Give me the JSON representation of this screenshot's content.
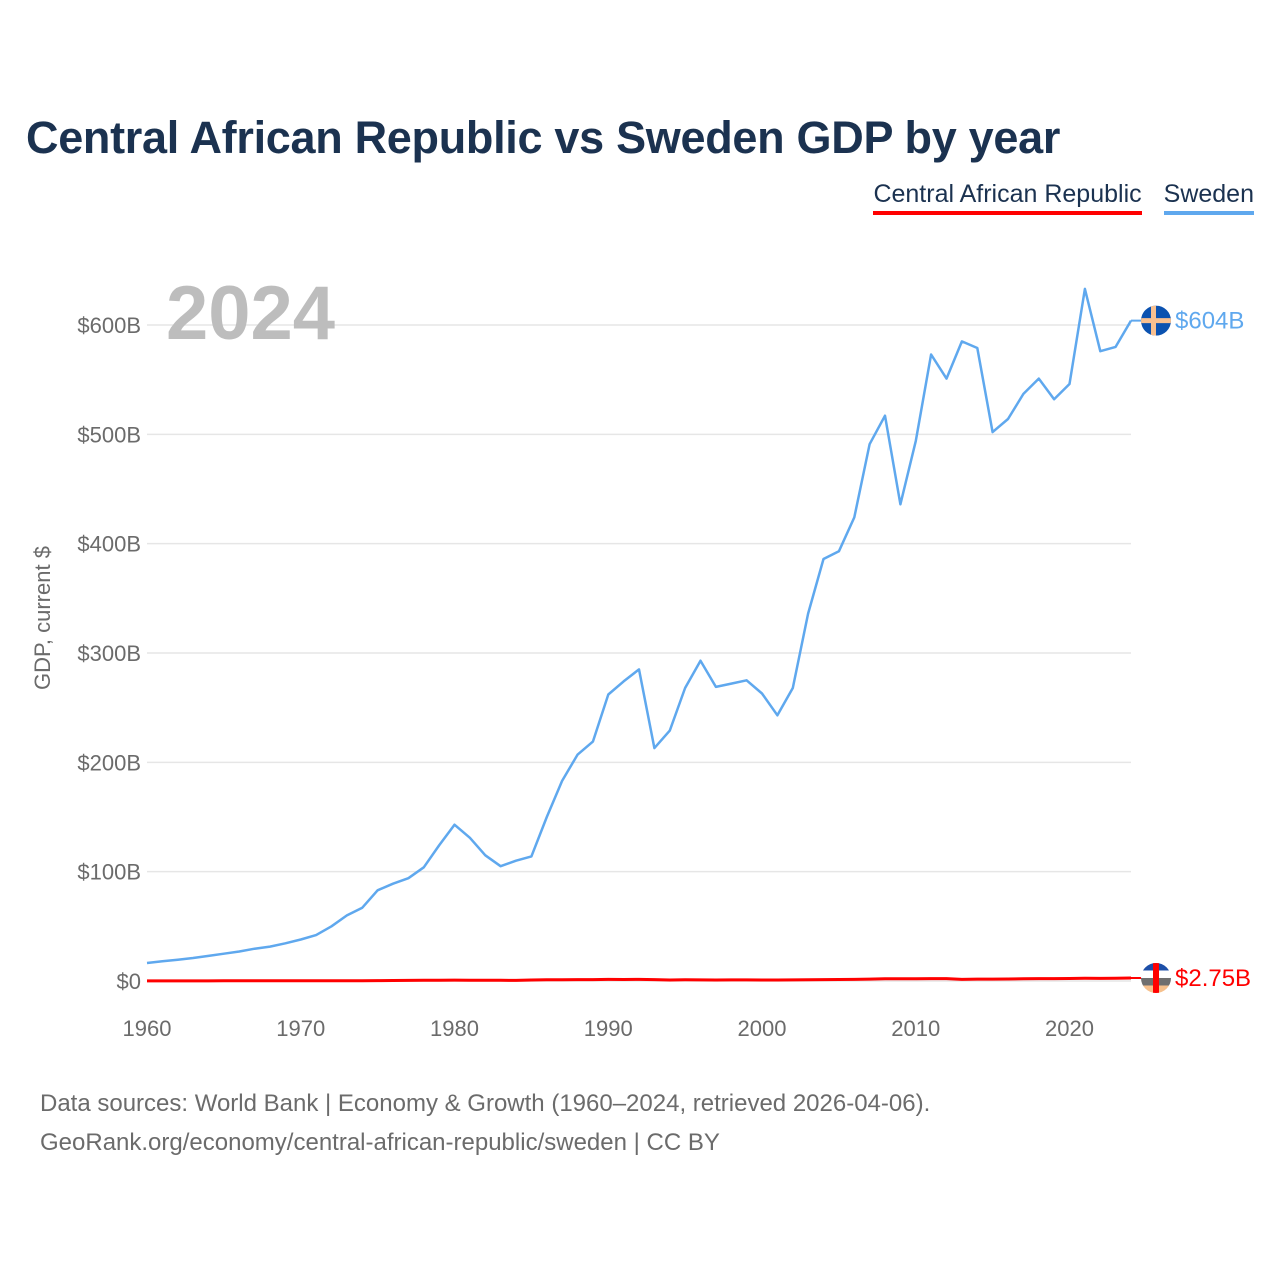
{
  "chart_data": {
    "type": "line",
    "title": "Central African Republic vs Sweden GDP by year",
    "ylabel": "GDP, current $",
    "xlabel": "",
    "current_year_label": "2024",
    "xlim": [
      1960,
      2024
    ],
    "ylim": [
      0,
      600
    ],
    "y_unit": "billion US$",
    "yticks": [
      0,
      100,
      200,
      300,
      400,
      500,
      600
    ],
    "ytick_labels": [
      "$0",
      "$100B",
      "$200B",
      "$300B",
      "$400B",
      "$500B",
      "$600B"
    ],
    "xticks": [
      1960,
      1970,
      1980,
      1990,
      2000,
      2010,
      2020
    ],
    "xtick_labels": [
      "1960",
      "1970",
      "1980",
      "1990",
      "2000",
      "2010",
      "2020"
    ],
    "grid": true,
    "legend_placement": "top-right",
    "series": [
      {
        "name": "Central African Republic",
        "color": "#ff0000",
        "end_label": "$2.75B",
        "flag_icon": "central-african-republic-flag-icon",
        "x": [
          1960,
          1961,
          1962,
          1963,
          1964,
          1965,
          1966,
          1967,
          1968,
          1969,
          1970,
          1971,
          1972,
          1973,
          1974,
          1975,
          1976,
          1977,
          1978,
          1979,
          1980,
          1981,
          1982,
          1983,
          1984,
          1985,
          1986,
          1987,
          1988,
          1989,
          1990,
          1991,
          1992,
          1993,
          1994,
          1995,
          1996,
          1997,
          1998,
          1999,
          2000,
          2001,
          2002,
          2003,
          2004,
          2005,
          2006,
          2007,
          2008,
          2009,
          2010,
          2011,
          2012,
          2013,
          2014,
          2015,
          2016,
          2017,
          2018,
          2019,
          2020,
          2021,
          2022,
          2023,
          2024
        ],
        "values": [
          0.11,
          0.11,
          0.12,
          0.12,
          0.13,
          0.14,
          0.15,
          0.15,
          0.17,
          0.18,
          0.19,
          0.21,
          0.23,
          0.29,
          0.32,
          0.38,
          0.45,
          0.53,
          0.6,
          0.7,
          0.8,
          0.7,
          0.66,
          0.64,
          0.58,
          0.87,
          1.1,
          1.2,
          1.3,
          1.25,
          1.44,
          1.38,
          1.43,
          1.3,
          0.88,
          1.08,
          1.02,
          0.93,
          0.97,
          0.99,
          0.91,
          0.94,
          0.99,
          1.14,
          1.27,
          1.35,
          1.46,
          1.7,
          1.98,
          1.98,
          2.0,
          2.2,
          2.2,
          1.5,
          1.7,
          1.7,
          1.8,
          2.0,
          2.2,
          2.2,
          2.3,
          2.5,
          2.4,
          2.6,
          2.75
        ]
      },
      {
        "name": "Sweden",
        "color": "#5fa8ee",
        "end_label": "$604B",
        "flag_icon": "sweden-flag-icon",
        "x": [
          1960,
          1961,
          1962,
          1963,
          1964,
          1965,
          1966,
          1967,
          1968,
          1969,
          1970,
          1971,
          1972,
          1973,
          1974,
          1975,
          1976,
          1977,
          1978,
          1979,
          1980,
          1981,
          1982,
          1983,
          1984,
          1985,
          1986,
          1987,
          1988,
          1989,
          1990,
          1991,
          1992,
          1993,
          1994,
          1995,
          1996,
          1997,
          1998,
          1999,
          2000,
          2001,
          2002,
          2003,
          2004,
          2005,
          2006,
          2007,
          2008,
          2009,
          2010,
          2011,
          2012,
          2013,
          2014,
          2015,
          2016,
          2017,
          2018,
          2019,
          2020,
          2021,
          2022,
          2023,
          2024
        ],
        "values": [
          16.5,
          18,
          19.5,
          21,
          23,
          25,
          27,
          29.5,
          31.5,
          34.5,
          38,
          42,
          50,
          60,
          67,
          83,
          89,
          94,
          104,
          124,
          143,
          131,
          115,
          105,
          110,
          114,
          150,
          183,
          207,
          219,
          262,
          274,
          285,
          213,
          229,
          268,
          293,
          269,
          272,
          275,
          263,
          243,
          268,
          336,
          386,
          393,
          424,
          491,
          517,
          436,
          494,
          573,
          551,
          585,
          579,
          502,
          514,
          537,
          551,
          532,
          546,
          633,
          576,
          580,
          604
        ]
      }
    ]
  },
  "source": {
    "line1": "Data sources: World Bank | Economy & Growth (1960–2024, retrieved 2026-04-06).",
    "line2": "GeoRank.org/economy/central-african-republic/sweden | CC BY"
  }
}
